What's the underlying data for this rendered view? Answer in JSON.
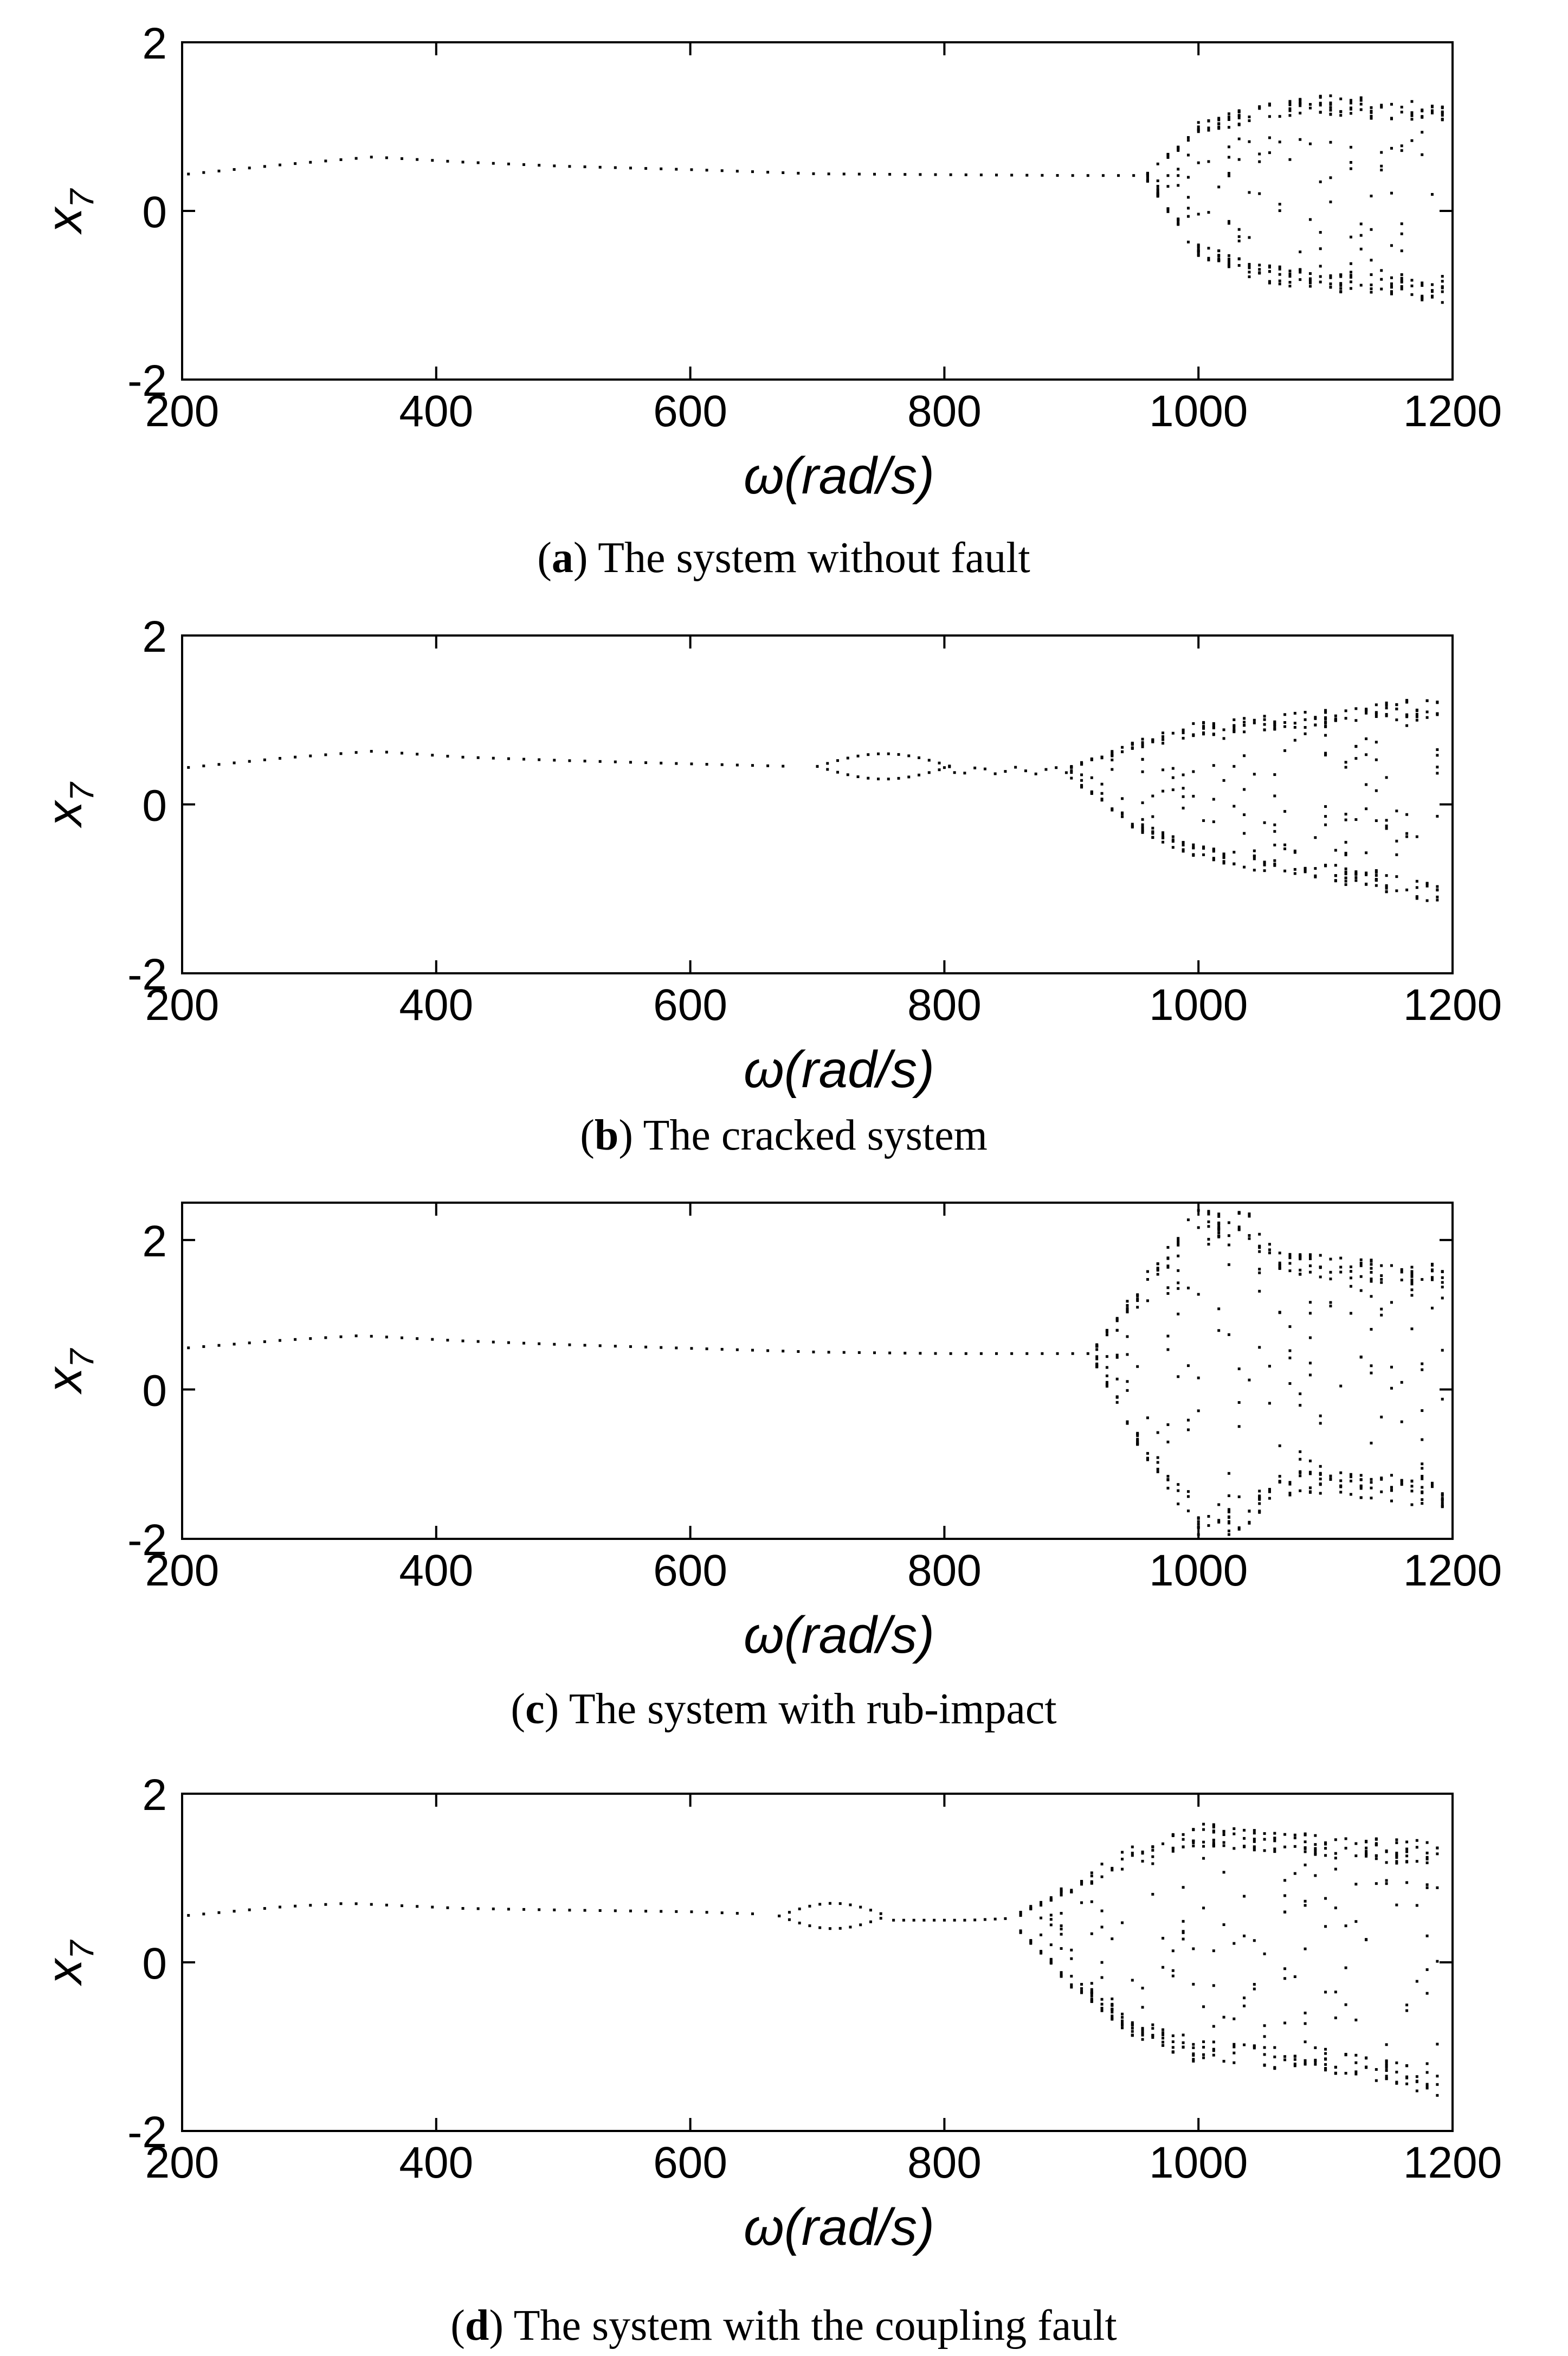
{
  "chart_data": [
    {
      "type": "scatter",
      "panel": "a",
      "caption_letter": "a",
      "caption_text": "The system without fault",
      "xlabel": "ω(rad/s)",
      "ylabel": "x",
      "ylabel_sub": "7",
      "xlim": [
        200,
        1200
      ],
      "ylim": [
        -2,
        2
      ],
      "xticks": [
        200,
        400,
        600,
        800,
        1000,
        1200
      ],
      "yticks": [
        -2,
        0,
        2
      ],
      "periodic_branch": [
        [
          200,
          0.43
        ],
        [
          280,
          0.55
        ],
        [
          350,
          0.64
        ],
        [
          420,
          0.58
        ],
        [
          500,
          0.53
        ],
        [
          600,
          0.49
        ],
        [
          700,
          0.44
        ],
        [
          800,
          0.43
        ],
        [
          900,
          0.42
        ],
        [
          955,
          0.42
        ]
      ],
      "chaos_onset": 960,
      "envelope_upper": [
        [
          960,
          0.45
        ],
        [
          1000,
          1.05
        ],
        [
          1050,
          1.28
        ],
        [
          1100,
          1.37
        ],
        [
          1150,
          1.33
        ],
        [
          1190,
          1.3
        ]
      ],
      "envelope_lower": [
        [
          960,
          0.35
        ],
        [
          1000,
          -0.55
        ],
        [
          1050,
          -0.85
        ],
        [
          1100,
          -0.95
        ],
        [
          1150,
          -1.0
        ],
        [
          1190,
          -1.1
        ]
      ],
      "grid": false
    },
    {
      "type": "scatter",
      "panel": "b",
      "caption_letter": "b",
      "caption_text": "The cracked system",
      "xlabel": "ω(rad/s)",
      "ylabel": "x",
      "ylabel_sub": "7",
      "xlim": [
        200,
        1200
      ],
      "ylim": [
        -2,
        2
      ],
      "xticks": [
        200,
        400,
        600,
        800,
        1000,
        1200
      ],
      "yticks": [
        -2,
        0,
        2
      ],
      "periodic_branch": [
        [
          200,
          0.43
        ],
        [
          280,
          0.55
        ],
        [
          350,
          0.63
        ],
        [
          420,
          0.56
        ],
        [
          500,
          0.52
        ],
        [
          600,
          0.48
        ],
        [
          680,
          0.45
        ]
      ],
      "period_doubling": [
        [
          730,
          0.6,
          0.3
        ],
        [
          780,
          0.58,
          0.3
        ]
      ],
      "chaos_onset": 900,
      "envelope_upper": [
        [
          900,
          0.45
        ],
        [
          950,
          0.75
        ],
        [
          1000,
          0.98
        ],
        [
          1050,
          1.05
        ],
        [
          1100,
          1.12
        ],
        [
          1190,
          1.28
        ]
      ],
      "envelope_lower": [
        [
          900,
          0.3
        ],
        [
          950,
          -0.3
        ],
        [
          1000,
          -0.65
        ],
        [
          1050,
          -0.8
        ],
        [
          1100,
          -0.9
        ],
        [
          1190,
          -1.18
        ]
      ],
      "grid": false
    },
    {
      "type": "scatter",
      "panel": "c",
      "caption_letter": "c",
      "caption_text": "The system with rub-impact",
      "xlabel": "ω(rad/s)",
      "ylabel": "x",
      "ylabel_sub": "7",
      "xlim": [
        200,
        1200
      ],
      "ylim": [
        -2,
        2.5
      ],
      "xticks": [
        200,
        400,
        600,
        800,
        1000,
        1200
      ],
      "yticks": [
        -2,
        0,
        2
      ],
      "periodic_branch": [
        [
          200,
          0.55
        ],
        [
          280,
          0.66
        ],
        [
          340,
          0.72
        ],
        [
          420,
          0.65
        ],
        [
          500,
          0.6
        ],
        [
          600,
          0.55
        ],
        [
          700,
          0.5
        ],
        [
          800,
          0.48
        ],
        [
          900,
          0.48
        ],
        [
          915,
          0.48
        ]
      ],
      "chaos_onset": 920,
      "envelope_upper": [
        [
          920,
          0.6
        ],
        [
          960,
          1.6
        ],
        [
          1000,
          2.45
        ],
        [
          1040,
          2.4
        ],
        [
          1060,
          1.85
        ],
        [
          1100,
          1.8
        ],
        [
          1190,
          1.7
        ]
      ],
      "envelope_lower": [
        [
          920,
          0.3
        ],
        [
          960,
          -1.0
        ],
        [
          1000,
          -1.95
        ],
        [
          1040,
          -1.95
        ],
        [
          1060,
          -1.45
        ],
        [
          1100,
          -1.4
        ],
        [
          1190,
          -1.6
        ]
      ],
      "grid": false
    },
    {
      "type": "scatter",
      "panel": "d",
      "caption_letter": "d",
      "caption_text": "The system with the coupling fault",
      "xlabel": "ω(rad/s)",
      "ylabel": "x",
      "ylabel_sub": "7",
      "xlim": [
        200,
        1200
      ],
      "ylim": [
        -2,
        2
      ],
      "xticks": [
        200,
        400,
        600,
        800,
        1000,
        1200
      ],
      "yticks": [
        -2,
        0,
        2
      ],
      "periodic_branch": [
        [
          200,
          0.55
        ],
        [
          280,
          0.66
        ],
        [
          330,
          0.7
        ],
        [
          420,
          0.64
        ],
        [
          500,
          0.62
        ],
        [
          600,
          0.6
        ],
        [
          660,
          0.57
        ]
      ],
      "period_doubling": [
        [
          700,
          0.7,
          0.4
        ],
        [
          730,
          0.72,
          0.38
        ]
      ],
      "stable_after": [
        [
          760,
          0.5
        ],
        [
          820,
          0.5
        ],
        [
          850,
          0.52
        ]
      ],
      "chaos_onset": 860,
      "envelope_upper": [
        [
          860,
          0.6
        ],
        [
          900,
          0.95
        ],
        [
          950,
          1.4
        ],
        [
          1000,
          1.65
        ],
        [
          1050,
          1.6
        ],
        [
          1100,
          1.5
        ],
        [
          1190,
          1.45
        ]
      ],
      "envelope_lower": [
        [
          860,
          0.35
        ],
        [
          900,
          -0.3
        ],
        [
          950,
          -0.9
        ],
        [
          1000,
          -1.2
        ],
        [
          1050,
          -1.25
        ],
        [
          1100,
          -1.3
        ],
        [
          1190,
          -1.6
        ]
      ],
      "grid": false
    }
  ]
}
